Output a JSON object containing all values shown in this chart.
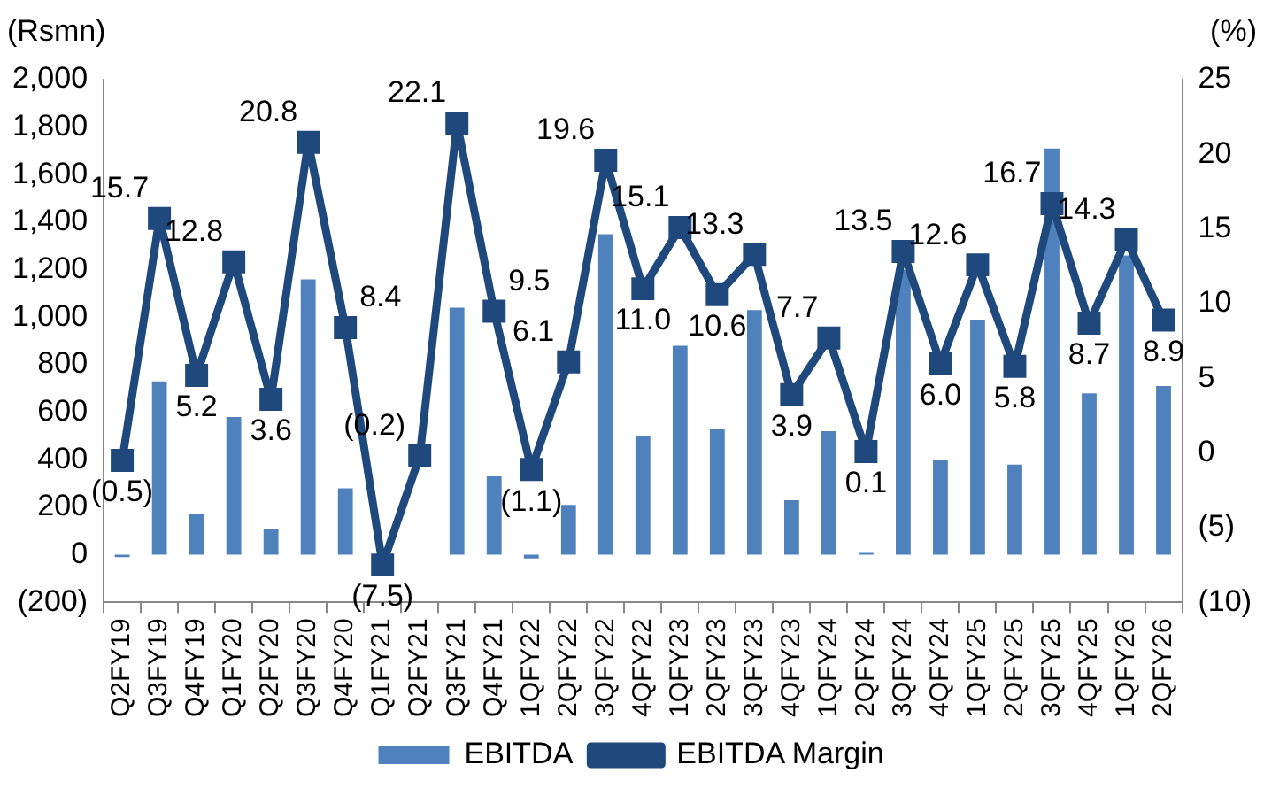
{
  "chart_data": {
    "type": "bar",
    "ylabel": "(Rsmn)",
    "y2label": "(%)",
    "categories": [
      "Q2FY19",
      "Q3FY19",
      "Q4FY19",
      "Q1FY20",
      "Q2FY20",
      "Q3FY20",
      "Q4FY20",
      "Q1FY21",
      "Q2FY21",
      "Q3FY21",
      "Q4FY21",
      "1QFY22",
      "2QFY22",
      "3QFY22",
      "4QFY22",
      "1QFY23",
      "2QFY23",
      "3QFY23",
      "4QFY23",
      "1QFY24",
      "2QFY24",
      "3QFY24",
      "4QFY24",
      "1QFY25",
      "2QFY25",
      "3QFY25",
      "4QFY25",
      "1QFY26",
      "2QFY26"
    ],
    "series": [
      {
        "name": "EBITDA",
        "color": "#4f81bd",
        "values": [
          -10,
          730,
          170,
          580,
          110,
          1160,
          280,
          null,
          null,
          1040,
          330,
          -15,
          210,
          1350,
          500,
          880,
          530,
          1030,
          230,
          520,
          8,
          1200,
          400,
          990,
          380,
          1710,
          680,
          1260,
          710
        ]
      },
      {
        "name": "EBITDA Margin",
        "type": "line",
        "axis": "y2",
        "color": "#1f497d",
        "marker": "square",
        "values": [
          -0.5,
          15.7,
          5.2,
          12.8,
          3.6,
          20.8,
          8.4,
          -7.5,
          -0.2,
          22.1,
          9.5,
          -1.1,
          6.1,
          19.6,
          11.0,
          15.1,
          10.6,
          13.3,
          3.9,
          7.7,
          0.1,
          13.5,
          6.0,
          12.6,
          5.8,
          16.7,
          8.7,
          14.3,
          8.9
        ],
        "value_labels": [
          "(0.5)",
          "15.7",
          "5.2",
          "12.8",
          "3.6",
          "20.8",
          "8.4",
          "(7.5)",
          "(0.2)",
          "22.1",
          "9.5",
          "(1.1)",
          "6.1",
          "19.6",
          "11.0",
          "15.1",
          "10.6",
          "13.3",
          "3.9",
          "7.7",
          "0.1",
          "13.5",
          "6.0",
          "12.6",
          "5.8",
          "16.7",
          "8.7",
          "14.3",
          "8.9"
        ]
      }
    ],
    "ylim": [
      -200,
      2000
    ],
    "yticks": [
      {
        "value": -200,
        "label": "(200)"
      },
      0,
      200,
      400,
      600,
      800,
      {
        "value": 1000,
        "label": "1,000"
      },
      {
        "value": 1200,
        "label": "1,200"
      },
      {
        "value": 1400,
        "label": "1,400"
      },
      {
        "value": 1600,
        "label": "1,600"
      },
      {
        "value": 1800,
        "label": "1,800"
      },
      {
        "value": 2000,
        "label": "2,000"
      }
    ],
    "y2lim": [
      -10,
      25
    ],
    "y2ticks": [
      {
        "value": -10,
        "label": "(10)"
      },
      {
        "value": -5,
        "label": "(5)"
      },
      0,
      5,
      10,
      15,
      20,
      25
    ],
    "grid": false,
    "legend": "bottom"
  }
}
